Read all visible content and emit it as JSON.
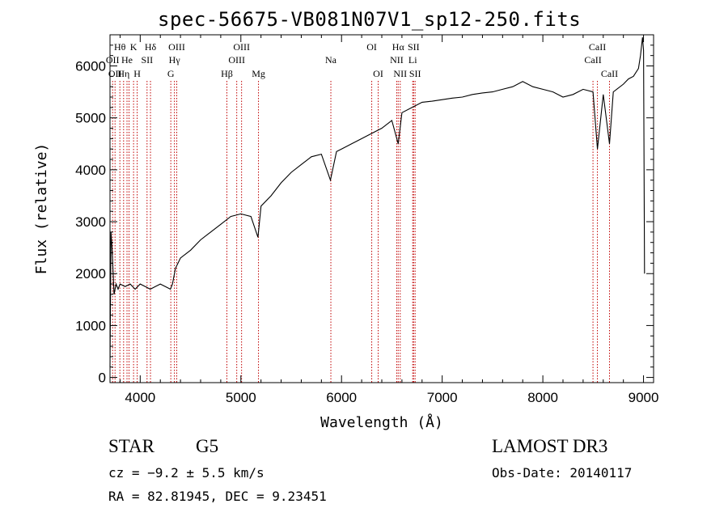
{
  "chart_data": {
    "type": "line",
    "title": "spec-56675-VB081N07V1_sp12-250.fits",
    "xlabel": "Wavelength (Å)",
    "ylabel": "Flux (relative)",
    "xlim": [
      3700,
      9100
    ],
    "ylim": [
      -100,
      6600
    ],
    "xticks": [
      4000,
      5000,
      6000,
      7000,
      8000,
      9000
    ],
    "yticks": [
      0,
      1000,
      2000,
      3000,
      4000,
      5000,
      6000
    ],
    "grid": false,
    "series": [
      {
        "name": "spectrum",
        "x": [
          3700,
          3710,
          3720,
          3740,
          3760,
          3780,
          3800,
          3850,
          3900,
          3950,
          4000,
          4050,
          4100,
          4150,
          4200,
          4250,
          4300,
          4320,
          4350,
          4400,
          4500,
          4600,
          4700,
          4800,
          4900,
          5000,
          5100,
          5170,
          5200,
          5300,
          5400,
          5500,
          5600,
          5700,
          5800,
          5890,
          5950,
          6000,
          6100,
          6200,
          6300,
          6400,
          6500,
          6563,
          6600,
          6700,
          6800,
          6900,
          7000,
          7100,
          7200,
          7300,
          7400,
          7500,
          7600,
          7700,
          7800,
          7900,
          8000,
          8100,
          8200,
          8300,
          8400,
          8498,
          8542,
          8600,
          8662,
          8700,
          8800,
          8850,
          8900,
          8950,
          8970,
          8990,
          9000,
          9010
        ],
        "y": [
          200,
          2800,
          2500,
          1600,
          1800,
          1700,
          1800,
          1750,
          1800,
          1700,
          1800,
          1750,
          1700,
          1750,
          1800,
          1750,
          1700,
          1800,
          2100,
          2300,
          2450,
          2650,
          2800,
          2950,
          3100,
          3150,
          3100,
          2700,
          3300,
          3500,
          3750,
          3950,
          4100,
          4250,
          4300,
          3800,
          4350,
          4400,
          4500,
          4600,
          4700,
          4800,
          4950,
          4500,
          5100,
          5200,
          5300,
          5320,
          5350,
          5380,
          5400,
          5450,
          5480,
          5500,
          5550,
          5600,
          5700,
          5600,
          5550,
          5500,
          5400,
          5450,
          5550,
          5500,
          4400,
          5450,
          4500,
          5500,
          5650,
          5750,
          5800,
          5950,
          6200,
          6550,
          6300,
          2000
        ]
      }
    ],
    "lines": [
      {
        "wave": 3726,
        "label": "OII",
        "row": 2
      },
      {
        "wave": 3750,
        "label": "OII",
        "row": 3
      },
      {
        "wave": 3798,
        "label": "Hθ",
        "row": 1
      },
      {
        "wave": 3835,
        "label": "Hη",
        "row": 3
      },
      {
        "wave": 3869,
        "label": "He",
        "row": 2
      },
      {
        "wave": 3889,
        "label": "",
        "row": 0
      },
      {
        "wave": 3934,
        "label": "K",
        "row": 1
      },
      {
        "wave": 3970,
        "label": "H",
        "row": 3
      },
      {
        "wave": 4068,
        "label": "SII",
        "row": 2
      },
      {
        "wave": 4102,
        "label": "Hδ",
        "row": 1
      },
      {
        "wave": 4304,
        "label": "G",
        "row": 3
      },
      {
        "wave": 4340,
        "label": "Hγ",
        "row": 2
      },
      {
        "wave": 4363,
        "label": "OIII",
        "row": 1
      },
      {
        "wave": 4861,
        "label": "Hβ",
        "row": 3
      },
      {
        "wave": 4959,
        "label": "OIII",
        "row": 2
      },
      {
        "wave": 5007,
        "label": "OIII",
        "row": 1
      },
      {
        "wave": 5175,
        "label": "Mg",
        "row": 3
      },
      {
        "wave": 5894,
        "label": "Na",
        "row": 2
      },
      {
        "wave": 6300,
        "label": "OI",
        "row": 1
      },
      {
        "wave": 6364,
        "label": "OI",
        "row": 3
      },
      {
        "wave": 6548,
        "label": "NII",
        "row": 2
      },
      {
        "wave": 6563,
        "label": "Hα",
        "row": 1
      },
      {
        "wave": 6583,
        "label": "NII",
        "row": 3
      },
      {
        "wave": 6707,
        "label": "Li",
        "row": 2
      },
      {
        "wave": 6716,
        "label": "SII",
        "row": 1
      },
      {
        "wave": 6731,
        "label": "SII",
        "row": 3
      },
      {
        "wave": 8498,
        "label": "CaII",
        "row": 2
      },
      {
        "wave": 8542,
        "label": "CaII",
        "row": 1
      },
      {
        "wave": 8662,
        "label": "CaII",
        "row": 3
      }
    ]
  },
  "info": {
    "object_class": "STAR",
    "subclass": "G5",
    "survey": "LAMOST DR3",
    "cz": "cz = −9.2 ± 5.5 km/s",
    "obs_date": "Obs-Date: 20140117",
    "coords": "RA =  82.81945, DEC =   9.23451"
  }
}
